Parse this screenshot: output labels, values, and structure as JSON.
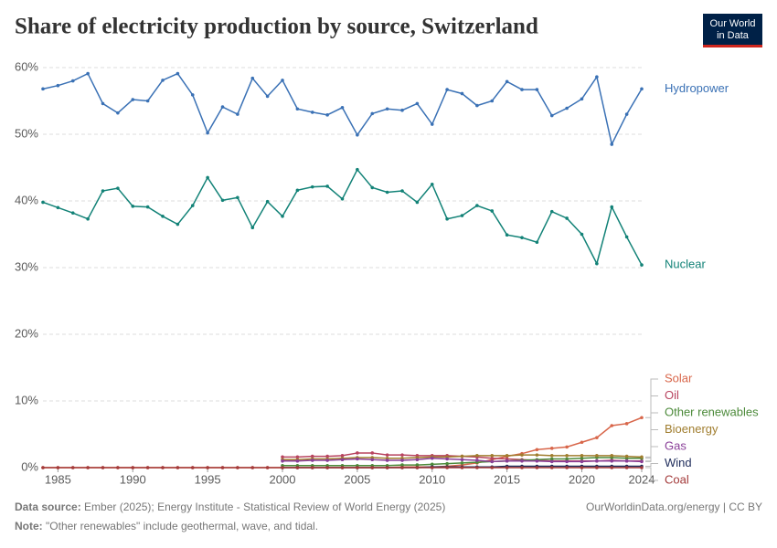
{
  "chart_data": {
    "type": "line",
    "title": "Share of electricity production by source, Switzerland",
    "logo": [
      "Our World",
      "in Data"
    ],
    "source_label": "Data source:",
    "source": "Ember (2025); Energy Institute - Statistical Review of World Energy (2025)",
    "credit": "OurWorldinData.org/energy | CC BY",
    "note_label": "Note:",
    "note": "\"Other renewables\" include geothermal, wave, and tidal.",
    "x": [
      1984,
      1985,
      1986,
      1987,
      1988,
      1989,
      1990,
      1991,
      1992,
      1993,
      1994,
      1995,
      1996,
      1997,
      1998,
      1999,
      2000,
      2001,
      2002,
      2003,
      2004,
      2005,
      2006,
      2007,
      2008,
      2009,
      2010,
      2011,
      2012,
      2013,
      2014,
      2015,
      2016,
      2017,
      2018,
      2019,
      2020,
      2021,
      2022,
      2023,
      2024
    ],
    "xlim": [
      1984,
      2024
    ],
    "xticks": [
      1985,
      1990,
      1995,
      2000,
      2005,
      2010,
      2015,
      2020,
      2024
    ],
    "ylim": [
      0,
      60
    ],
    "yticks": [
      {
        "value": 0,
        "label": "0%"
      },
      {
        "value": 10,
        "label": "10%"
      },
      {
        "value": 20,
        "label": "20%"
      },
      {
        "value": 30,
        "label": "30%"
      },
      {
        "value": 40,
        "label": "40%"
      },
      {
        "value": 50,
        "label": "50%"
      },
      {
        "value": 60,
        "label": "60%"
      }
    ],
    "grid": true,
    "series": [
      {
        "name": "Hydropower",
        "color": "#3a71b5",
        "values": [
          56.8,
          57.3,
          58.0,
          59.1,
          54.6,
          53.2,
          55.2,
          55.0,
          58.1,
          59.1,
          55.9,
          50.2,
          54.1,
          53.0,
          58.4,
          55.7,
          58.1,
          53.8,
          53.3,
          52.9,
          54.0,
          49.9,
          53.1,
          53.8,
          53.6,
          54.6,
          51.5,
          56.7,
          56.1,
          54.3,
          55.0,
          57.9,
          56.7,
          56.7,
          52.8,
          53.9,
          55.3,
          58.6,
          48.5,
          53.0,
          56.8
        ]
      },
      {
        "name": "Nuclear",
        "color": "#128277",
        "values": [
          39.8,
          39.0,
          38.2,
          37.3,
          41.5,
          41.9,
          39.2,
          39.1,
          37.7,
          36.5,
          39.3,
          43.5,
          40.1,
          40.5,
          36.0,
          39.9,
          37.7,
          41.6,
          42.1,
          42.2,
          40.3,
          44.7,
          42.0,
          41.3,
          41.5,
          39.8,
          42.5,
          37.3,
          37.8,
          39.3,
          38.5,
          34.9,
          34.5,
          33.8,
          38.4,
          37.4,
          35.0,
          30.6,
          39.1,
          34.6,
          30.4
        ]
      },
      {
        "name": "Solar",
        "color": "#d8664a",
        "values": [
          0,
          0,
          0,
          0,
          0,
          0,
          0,
          0,
          0,
          0,
          0,
          0,
          0,
          0,
          0,
          0,
          0,
          0,
          0,
          0,
          0,
          0,
          0,
          0,
          0.1,
          0.1,
          0.1,
          0.2,
          0.4,
          0.7,
          1.2,
          1.7,
          2.1,
          2.7,
          2.9,
          3.1,
          3.8,
          4.5,
          6.3,
          6.6,
          7.5
        ]
      },
      {
        "name": "Oil",
        "color": "#b8435f",
        "values": [
          null,
          null,
          null,
          null,
          null,
          null,
          null,
          null,
          null,
          null,
          null,
          null,
          null,
          null,
          null,
          null,
          1.6,
          1.6,
          1.7,
          1.7,
          1.8,
          2.2,
          2.2,
          1.9,
          1.9,
          1.8,
          1.8,
          1.8,
          1.7,
          1.6,
          1.4,
          1.3,
          1.2,
          1.1,
          1.0,
          1.0,
          1.0,
          1.0,
          1.1,
          1.0,
          1.0
        ]
      },
      {
        "name": "Other renewables",
        "color": "#4c8a3a",
        "values": [
          null,
          null,
          null,
          null,
          null,
          null,
          null,
          null,
          null,
          null,
          null,
          null,
          null,
          null,
          null,
          null,
          0.3,
          0.3,
          0.3,
          0.3,
          0.3,
          0.3,
          0.3,
          0.3,
          0.4,
          0.4,
          0.5,
          0.6,
          0.7,
          0.8,
          0.9,
          1.0,
          1.1,
          1.2,
          1.3,
          1.3,
          1.4,
          1.5,
          1.5,
          1.4,
          1.4
        ]
      },
      {
        "name": "Bioenergy",
        "color": "#a07d2e",
        "values": [
          null,
          null,
          null,
          null,
          null,
          null,
          null,
          null,
          null,
          null,
          null,
          null,
          null,
          null,
          null,
          null,
          1.2,
          1.2,
          1.3,
          1.3,
          1.4,
          1.5,
          1.5,
          1.4,
          1.4,
          1.5,
          1.6,
          1.6,
          1.7,
          1.8,
          1.8,
          1.8,
          1.9,
          1.9,
          1.8,
          1.8,
          1.8,
          1.8,
          1.8,
          1.7,
          1.6
        ]
      },
      {
        "name": "Gas",
        "color": "#8a3f98",
        "values": [
          null,
          null,
          null,
          null,
          null,
          null,
          null,
          null,
          null,
          null,
          null,
          null,
          null,
          null,
          null,
          null,
          1.0,
          1.0,
          1.1,
          1.1,
          1.2,
          1.3,
          1.2,
          1.1,
          1.1,
          1.2,
          1.4,
          1.3,
          1.2,
          1.1,
          0.9,
          1.0,
          1.0,
          1.0,
          0.9,
          0.9,
          0.9,
          1.0,
          1.0,
          1.0,
          0.9
        ]
      },
      {
        "name": "Wind",
        "color": "#1d2b5a",
        "values": [
          null,
          null,
          null,
          null,
          null,
          null,
          null,
          null,
          null,
          null,
          null,
          null,
          null,
          null,
          null,
          null,
          0,
          0,
          0,
          0,
          0,
          0,
          0,
          0,
          0,
          0,
          0.1,
          0.1,
          0.1,
          0.1,
          0.1,
          0.2,
          0.2,
          0.2,
          0.2,
          0.2,
          0.2,
          0.2,
          0.2,
          0.2,
          0.2
        ]
      },
      {
        "name": "Coal",
        "color": "#a33a3a",
        "values": [
          0,
          0,
          0,
          0,
          0,
          0,
          0,
          0,
          0,
          0,
          0,
          0,
          0,
          0,
          0,
          0,
          0,
          0,
          0,
          0,
          0,
          0,
          0,
          0,
          0,
          0,
          0,
          0,
          0,
          0,
          0,
          0,
          0,
          0,
          0,
          0,
          0,
          0,
          0,
          0,
          0
        ]
      }
    ]
  }
}
